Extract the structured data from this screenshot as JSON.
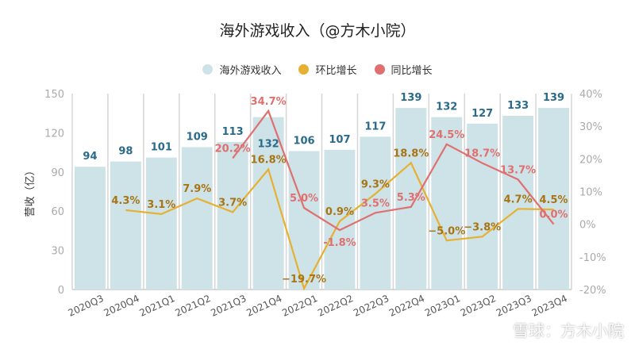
{
  "chart_data": {
    "type": "bar",
    "title": "海外游戏收入（@方木小院）",
    "categories": [
      "2020Q3",
      "2020Q4",
      "2021Q1",
      "2021Q2",
      "2021Q3",
      "2021Q4",
      "2022Q1",
      "2022Q2",
      "2022Q3",
      "2022Q4",
      "2023Q1",
      "2023Q2",
      "2023Q3",
      "2023Q4"
    ],
    "ylabel": "营收（亿）",
    "ylim": [
      0,
      150
    ],
    "yticks": [
      "0",
      "30",
      "60",
      "90",
      "120",
      "150"
    ],
    "y2lim": [
      -20,
      40
    ],
    "y2ticks": [
      "-20%",
      "-10%",
      "0%",
      "10%",
      "20%",
      "30%",
      "40%"
    ],
    "legend_position": "top",
    "series": [
      {
        "name": "海外游戏收入",
        "kind": "bar",
        "color": "#cde3e8",
        "label_color": "#2a6a8a",
        "values": [
          94,
          98,
          101,
          109,
          113,
          132,
          106,
          107,
          117,
          139,
          132,
          127,
          133,
          139
        ]
      },
      {
        "name": "环比增长",
        "kind": "line",
        "axis": "right",
        "color": "#e6b030",
        "label_color": "#a87416",
        "values": [
          null,
          4.3,
          3.1,
          7.9,
          3.7,
          16.8,
          -19.7,
          0.9,
          9.3,
          18.8,
          -5.0,
          -3.8,
          4.7,
          4.5
        ],
        "labels": [
          null,
          "4.3%",
          "3.1%",
          "7.9%",
          "3.7%",
          "16.8%",
          "−19.7%",
          "0.9%",
          "9.3%",
          "18.8%",
          "−5.0%",
          "−3.8%",
          "4.7%",
          "4.5%"
        ]
      },
      {
        "name": "同比增长",
        "kind": "line",
        "axis": "right",
        "color": "#e07070",
        "label_color": "#e07070",
        "values": [
          null,
          null,
          null,
          null,
          20.2,
          34.7,
          5.0,
          -1.8,
          3.5,
          5.3,
          24.5,
          18.7,
          13.7,
          0.0
        ],
        "labels": [
          null,
          null,
          null,
          null,
          "20.2%",
          "34.7%",
          "5.0%",
          "-1.8%",
          "3.5%",
          "5.3%",
          "24.5%",
          "18.7%",
          "13.7%",
          "0.0%"
        ]
      }
    ]
  },
  "watermark": "雪球：方木小院"
}
